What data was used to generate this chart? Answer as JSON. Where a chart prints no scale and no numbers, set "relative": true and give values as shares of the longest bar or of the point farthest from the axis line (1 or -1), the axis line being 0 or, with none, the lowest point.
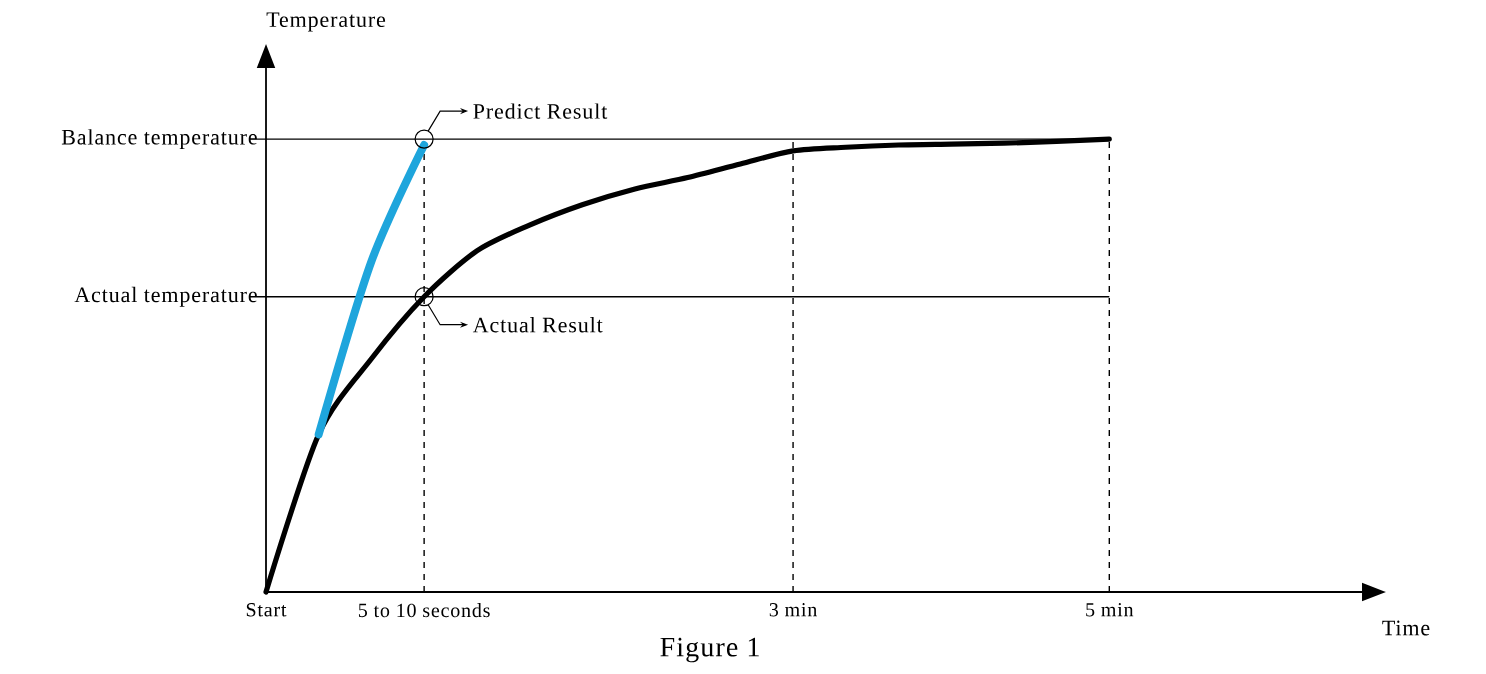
{
  "chart_data": {
    "type": "line",
    "relative": true,
    "xlabel": "Time",
    "ylabel": "Temperature",
    "categories": [
      "Start",
      null,
      null,
      "5 to 10 seconds",
      null,
      null,
      null,
      null,
      null,
      null,
      "3 min",
      null,
      null,
      null,
      null,
      null,
      "5 min",
      null,
      null,
      null,
      null,
      null
    ],
    "series": [
      {
        "color": "#000000",
        "values": [
          0,
          0.348,
          0.515,
          0.652,
          0.753,
          0.81,
          0.855,
          0.89,
          0.915,
          0.945,
          0.974,
          0.982,
          0.987,
          0.989,
          0.991,
          0.995,
          1,
          null,
          null,
          null,
          null,
          null
        ]
      },
      {
        "color": "#1ea5dc",
        "values": [
          null,
          0.348,
          0.73,
          0.987,
          null,
          null,
          null,
          null,
          null,
          null,
          null,
          null,
          null,
          null,
          null,
          null,
          null,
          null,
          null,
          null,
          null,
          null
        ]
      }
    ],
    "ref_lines": [
      {
        "axis": "y",
        "value": 1,
        "label": "Balance temperature",
        "line_style": "solid"
      },
      {
        "axis": "y",
        "value": 0.652,
        "label": "Actual temperature",
        "line_style": "solid"
      }
    ],
    "annotations": [
      {
        "text": "Predict Result",
        "x": "5 to 10 seconds",
        "y": 1
      },
      {
        "text": "Actual Result",
        "x": "5 to 10 seconds",
        "y": 0.652
      },
      "Figure 1"
    ],
    "grid": "x",
    "marker": "none",
    "line_style": "solid"
  }
}
